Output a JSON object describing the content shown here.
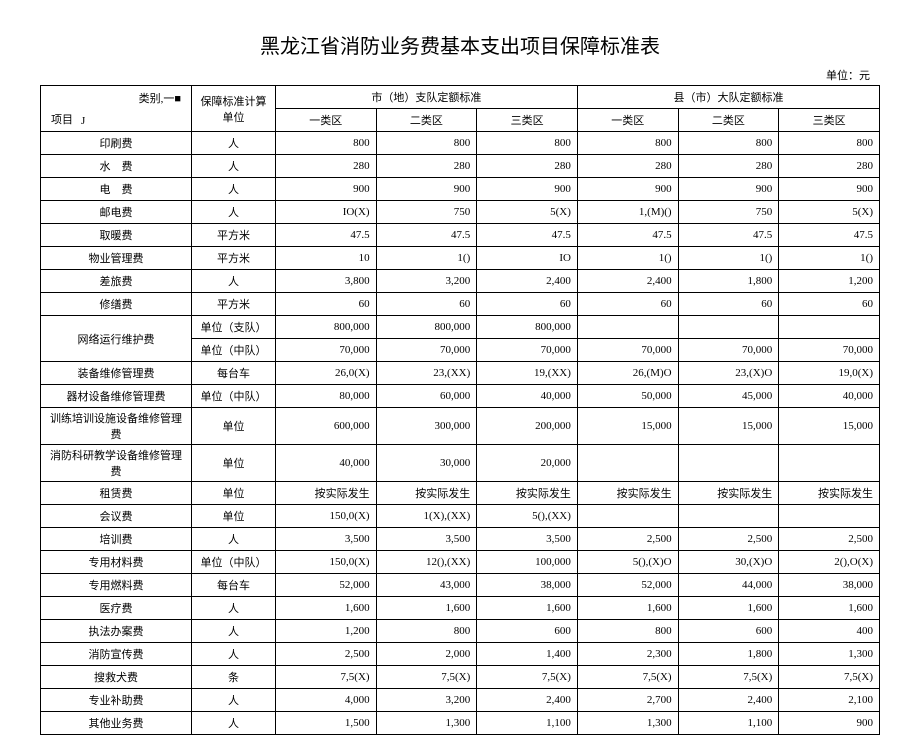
{
  "title": "黑龙江省消防业务费基本支出项目保障标准表",
  "unit_label": "单位：元",
  "header": {
    "item_category": "类别,一■",
    "item_project": "项目",
    "item_j": "J",
    "calc_unit": "保障标准计算单位",
    "group_city": "市（地）支队定额标准",
    "group_county": "县（市）大队定额标准",
    "zone1": "一类区",
    "zone2": "二类区",
    "zone3": "三类区"
  },
  "rows": [
    {
      "item": "印刷费",
      "unit": "人",
      "v": [
        "800",
        "800",
        "800",
        "800",
        "800",
        "800"
      ]
    },
    {
      "item": "水　费",
      "unit": "人",
      "v": [
        "280",
        "280",
        "280",
        "280",
        "280",
        "280"
      ]
    },
    {
      "item": "电　费",
      "unit": "人",
      "v": [
        "900",
        "900",
        "900",
        "900",
        "900",
        "900"
      ]
    },
    {
      "item": "邮电费",
      "unit": "人",
      "v": [
        "IO(X)",
        "750",
        "5(X)",
        "1,(M)()",
        "750",
        "5(X)"
      ]
    },
    {
      "item": "取暖费",
      "unit": "平方米",
      "v": [
        "47.5",
        "47.5",
        "47.5",
        "47.5",
        "47.5",
        "47.5"
      ]
    },
    {
      "item": "物业管理费",
      "unit": "平方米",
      "v": [
        "10",
        "1()",
        "IO",
        "1()",
        "1()",
        "1()"
      ]
    },
    {
      "item": "差旅费",
      "unit": "人",
      "v": [
        "3,800",
        "3,200",
        "2,400",
        "2,400",
        "1,800",
        "1,200"
      ]
    },
    {
      "item": "修缮费",
      "unit": "平方米",
      "v": [
        "60",
        "60",
        "60",
        "60",
        "60",
        "60"
      ]
    },
    {
      "item": "网络运行维护费",
      "unit": "单位（支队）",
      "v": [
        "800,000",
        "800,000",
        "800,000",
        "",
        "",
        ""
      ],
      "rowspan": 2
    },
    {
      "item": "",
      "unit": "单位（中队）",
      "v": [
        "70,000",
        "70,000",
        "70,000",
        "70,000",
        "70,000",
        "70,000"
      ],
      "merged": true
    },
    {
      "item": "装备维修管理费",
      "unit": "每台车",
      "v": [
        "26,0(X)",
        "23,(XX)",
        "19,(XX)",
        "26,(M)O",
        "23,(X)O",
        "19,0(X)"
      ]
    },
    {
      "item": "器材设备维修管理费",
      "unit": "单位（中队）",
      "v": [
        "80,000",
        "60,000",
        "40,000",
        "50,000",
        "45,000",
        "40,000"
      ]
    },
    {
      "item": "训练培训设施设备维修管理费",
      "unit": "单位",
      "v": [
        "600,000",
        "300,000",
        "200,000",
        "15,000",
        "15,000",
        "15,000"
      ]
    },
    {
      "item": "消防科研教学设备维修管理费",
      "unit": "单位",
      "v": [
        "40,000",
        "30,000",
        "20,000",
        "",
        "",
        ""
      ]
    },
    {
      "item": "租赁费",
      "unit": "单位",
      "v": [
        "按实际发生",
        "按实际发生",
        "按实际发生",
        "按实际发生",
        "按实际发生",
        "按实际发生"
      ]
    },
    {
      "item": "会议费",
      "unit": "单位",
      "v": [
        "150,0(X)",
        "1(X),(XX)",
        "5(),(XX)",
        "",
        "",
        ""
      ]
    },
    {
      "item": "培训费",
      "unit": "人",
      "v": [
        "3,500",
        "3,500",
        "3,500",
        "2,500",
        "2,500",
        "2,500"
      ]
    },
    {
      "item": "专用材料费",
      "unit": "单位（中队）",
      "v": [
        "150,0(X)",
        "12(),(XX)",
        "100,000",
        "5(),(X)O",
        "30,(X)O",
        "2(),O(X)"
      ]
    },
    {
      "item": "专用燃料费",
      "unit": "每台车",
      "v": [
        "52,000",
        "43,000",
        "38,000",
        "52,000",
        "44,000",
        "38,000"
      ]
    },
    {
      "item": "医疗费",
      "unit": "人",
      "v": [
        "1,600",
        "1,600",
        "1,600",
        "1,600",
        "1,600",
        "1,600"
      ]
    },
    {
      "item": "执法办案费",
      "unit": "人",
      "v": [
        "1,200",
        "800",
        "600",
        "800",
        "600",
        "400"
      ]
    },
    {
      "item": "消防宣传费",
      "unit": "人",
      "v": [
        "2,500",
        "2,000",
        "1,400",
        "2,300",
        "1,800",
        "1,300"
      ]
    },
    {
      "item": "搜救犬费",
      "unit": "条",
      "v": [
        "7,5(X)",
        "7,5(X)",
        "7,5(X)",
        "7,5(X)",
        "7,5(X)",
        "7,5(X)"
      ]
    },
    {
      "item": "专业补助费",
      "unit": "人",
      "v": [
        "4,000",
        "3,200",
        "2,400",
        "2,700",
        "2,400",
        "2,100"
      ]
    },
    {
      "item": "其他业务费",
      "unit": "人",
      "v": [
        "1,500",
        "1,300",
        "1,100",
        "1,300",
        "1,100",
        "900"
      ]
    }
  ]
}
